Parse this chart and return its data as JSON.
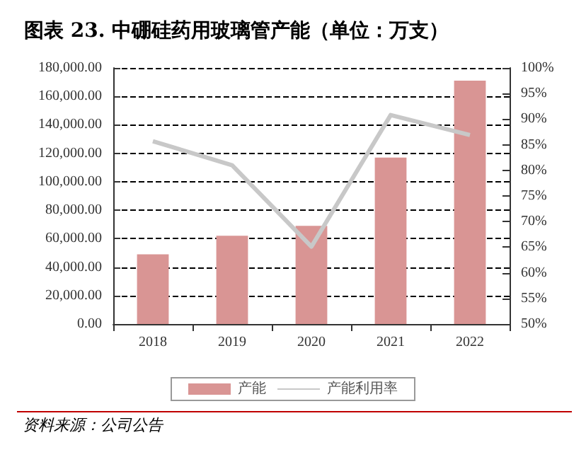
{
  "chart_data": {
    "type": "bar",
    "title": "图表 23. 中硼硅药用玻璃管产能（单位：万支）",
    "categories": [
      "2018",
      "2019",
      "2020",
      "2021",
      "2022"
    ],
    "series": [
      {
        "name": "产能",
        "color": "#d99594",
        "values": [
          49000,
          62000,
          69000,
          117000,
          171000
        ]
      },
      {
        "name": "产能利用率",
        "type": "line",
        "axis": "y2",
        "color": "#c8c8c8",
        "values": [
          85.7,
          81,
          65.1,
          90.8,
          86.9
        ]
      }
    ],
    "ylim": [
      0,
      180000
    ],
    "yticks": [
      {
        "value": 0,
        "label": "0.00"
      },
      {
        "value": 20000,
        "label": "20,000.00"
      },
      {
        "value": 40000,
        "label": "40,000.00"
      },
      {
        "value": 60000,
        "label": "60,000.00"
      },
      {
        "value": 80000,
        "label": "80,000.00"
      },
      {
        "value": 100000,
        "label": "100,000.00"
      },
      {
        "value": 120000,
        "label": "120,000.00"
      },
      {
        "value": 140000,
        "label": "140,000.00"
      },
      {
        "value": 160000,
        "label": "160,000.00"
      },
      {
        "value": 180000,
        "label": "180,000.00"
      }
    ],
    "y2lim": [
      50,
      100
    ],
    "y2ticks": [
      {
        "value": 50,
        "label": "50%"
      },
      {
        "value": 55,
        "label": "55%"
      },
      {
        "value": 60,
        "label": "60%"
      },
      {
        "value": 65,
        "label": "65%"
      },
      {
        "value": 70,
        "label": "70%"
      },
      {
        "value": 75,
        "label": "75%"
      },
      {
        "value": 80,
        "label": "80%"
      },
      {
        "value": 85,
        "label": "85%"
      },
      {
        "value": 90,
        "label": "90%"
      },
      {
        "value": 95,
        "label": "95%"
      },
      {
        "value": 100,
        "label": "100%"
      }
    ],
    "grid": "y",
    "legend": "bottom",
    "marker": "none",
    "line_style": "solid",
    "annotations": [
      "资料来源：公司公告"
    ]
  }
}
